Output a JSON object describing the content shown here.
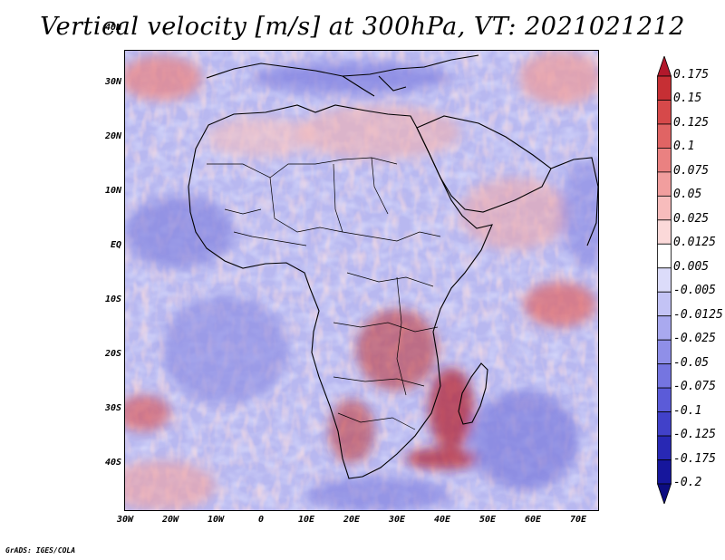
{
  "title": "Vertical velocity [m/s] at 300hPa, VT: 2021021212",
  "footer": "GrADS: IGES/COLA",
  "axes": {
    "y_ticks": [
      "40N",
      "30N",
      "20N",
      "10N",
      "EQ",
      "10S",
      "20S",
      "30S",
      "40S"
    ],
    "x_ticks": [
      "30W",
      "20W",
      "10W",
      "0",
      "10E",
      "20E",
      "30E",
      "40E",
      "50E",
      "60E",
      "70E"
    ],
    "lon_range": [
      -30,
      75
    ],
    "lat_range": [
      -40,
      45
    ]
  },
  "colorbar": {
    "labels": [
      "0.175",
      "0.15",
      "0.125",
      "0.1",
      "0.075",
      "0.05",
      "0.025",
      "0.0125",
      "0.005",
      "-0.005",
      "-0.0125",
      "-0.025",
      "-0.05",
      "-0.075",
      "-0.1",
      "-0.125",
      "-0.175",
      "-0.2"
    ],
    "colors": [
      "#b2182b",
      "#c62f34",
      "#d6494a",
      "#e06464",
      "#ea8181",
      "#f19e9e",
      "#f7bcbc",
      "#fbd9d9",
      "#ffffff",
      "#dcdcfa",
      "#c3c3f5",
      "#a9a9ef",
      "#8f8fe8",
      "#7575e0",
      "#5b5bd8",
      "#4141c9",
      "#2828b4",
      "#16169c",
      "#0c0c80"
    ]
  }
}
